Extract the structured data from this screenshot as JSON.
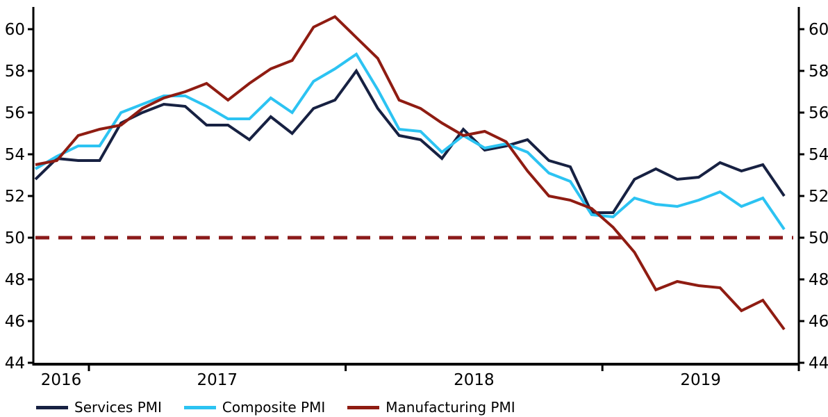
{
  "chart_data": {
    "type": "line",
    "title": "",
    "xlabel": "",
    "ylabel": "",
    "x": [
      "Oct 2016",
      "Nov 2016",
      "Dec 2016",
      "Jan 2017",
      "Feb 2017",
      "Mar 2017",
      "Apr 2017",
      "May 2017",
      "Jun 2017",
      "Jul 2017",
      "Aug 2017",
      "Sep 2017",
      "Oct 2017",
      "Nov 2017",
      "Dec 2017",
      "Jan 2018",
      "Feb 2018",
      "Mar 2018",
      "Apr 2018",
      "May 2018",
      "Jun 2018",
      "Jul 2018",
      "Aug 2018",
      "Sep 2018",
      "Oct 2018",
      "Nov 2018",
      "Dec 2018",
      "Jan 2019",
      "Feb 2019",
      "Mar 2019",
      "Apr 2019",
      "May 2019",
      "Jun 2019",
      "Jul 2019",
      "Aug 2019",
      "Sep 2019"
    ],
    "x_tick_labels": [
      "2016",
      "2017",
      "2018",
      "2019"
    ],
    "series": [
      {
        "name": "Services PMI",
        "color": "#172142",
        "values": [
          52.8,
          53.8,
          53.7,
          53.7,
          55.5,
          56.0,
          56.4,
          56.3,
          55.4,
          55.4,
          54.7,
          55.8,
          55.0,
          56.2,
          56.6,
          58.0,
          56.2,
          54.9,
          54.7,
          53.8,
          55.2,
          54.2,
          54.4,
          54.7,
          53.7,
          53.4,
          51.2,
          51.2,
          52.8,
          53.3,
          52.8,
          52.9,
          53.6,
          53.2,
          53.5,
          52.0
        ]
      },
      {
        "name": "Composite PMI",
        "color": "#2CC3F2",
        "values": [
          53.3,
          53.9,
          54.4,
          54.4,
          56.0,
          56.4,
          56.8,
          56.8,
          56.3,
          55.7,
          55.7,
          56.7,
          56.0,
          57.5,
          58.1,
          58.8,
          57.1,
          55.2,
          55.1,
          54.1,
          54.9,
          54.3,
          54.5,
          54.1,
          53.1,
          52.7,
          51.1,
          51.0,
          51.9,
          51.6,
          51.5,
          51.8,
          52.2,
          51.5,
          51.9,
          50.4
        ]
      },
      {
        "name": "Manufacturing PMI",
        "color": "#8F1C12",
        "values": [
          53.5,
          53.7,
          54.9,
          55.2,
          55.4,
          56.2,
          56.7,
          57.0,
          57.4,
          56.6,
          57.4,
          58.1,
          58.5,
          60.1,
          60.6,
          59.6,
          58.6,
          56.6,
          56.2,
          55.5,
          54.9,
          55.1,
          54.6,
          53.2,
          52.0,
          51.8,
          51.4,
          50.5,
          49.3,
          47.5,
          47.9,
          47.7,
          47.6,
          46.5,
          47.0,
          45.6
        ]
      }
    ],
    "baseline": {
      "value": 50,
      "color": "#8B1A1A",
      "style": "dashed"
    },
    "ylim": [
      44,
      60
    ],
    "yticks": [
      44,
      46,
      48,
      50,
      52,
      54,
      56,
      58,
      60
    ],
    "y_axis_sides": "both",
    "grid": false,
    "legend_position": "bottom-left",
    "axis_color": "#000000"
  }
}
